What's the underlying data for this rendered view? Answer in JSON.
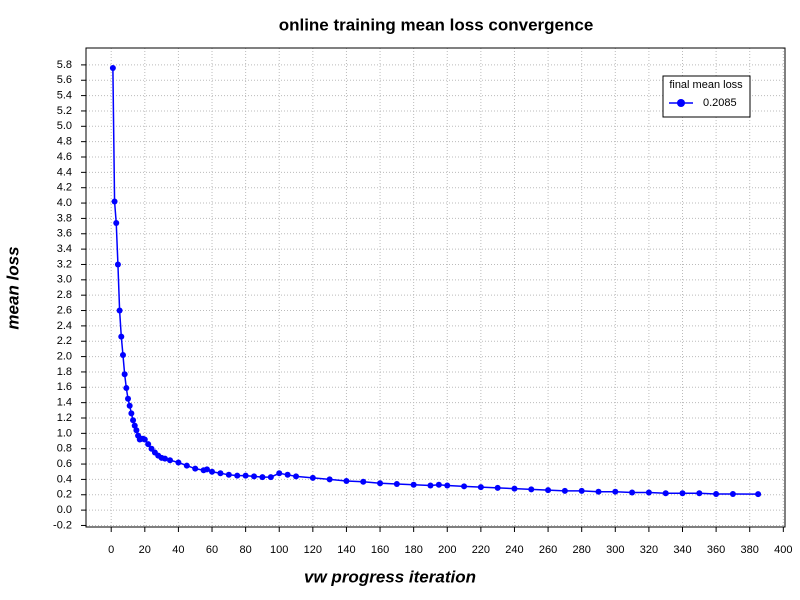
{
  "chart_data": {
    "type": "line",
    "title": "online training mean loss convergence",
    "x_label": "vw progress iteration",
    "y_label": "mean loss",
    "legend_title": "final mean loss",
    "legend_position": "upper right",
    "grid": true,
    "x": [
      1,
      2,
      3,
      4,
      5,
      6,
      7,
      8,
      9,
      10,
      11,
      12,
      13,
      14,
      15,
      16,
      17,
      18,
      19,
      20,
      22,
      24,
      26,
      28,
      30,
      32,
      35,
      40,
      45,
      50,
      55,
      57,
      60,
      65,
      70,
      75,
      80,
      85,
      90,
      95,
      100,
      105,
      110,
      120,
      130,
      140,
      150,
      160,
      170,
      180,
      190,
      195,
      200,
      210,
      220,
      230,
      240,
      250,
      260,
      270,
      280,
      290,
      300,
      310,
      320,
      330,
      340,
      350,
      360,
      370,
      385
    ],
    "series": [
      {
        "name": "0.2085",
        "color": "#0000ff",
        "values": [
          5.76,
          4.02,
          3.74,
          3.2,
          2.6,
          2.26,
          2.02,
          1.77,
          1.59,
          1.45,
          1.36,
          1.26,
          1.17,
          1.1,
          1.04,
          0.97,
          0.92,
          0.93,
          0.93,
          0.92,
          0.86,
          0.8,
          0.75,
          0.71,
          0.68,
          0.67,
          0.65,
          0.62,
          0.58,
          0.54,
          0.52,
          0.53,
          0.5,
          0.48,
          0.46,
          0.45,
          0.45,
          0.44,
          0.43,
          0.43,
          0.48,
          0.46,
          0.44,
          0.42,
          0.4,
          0.38,
          0.37,
          0.35,
          0.34,
          0.33,
          0.32,
          0.33,
          0.32,
          0.31,
          0.3,
          0.29,
          0.28,
          0.27,
          0.26,
          0.25,
          0.25,
          0.24,
          0.24,
          0.23,
          0.23,
          0.22,
          0.22,
          0.22,
          0.21,
          0.21,
          0.2085
        ]
      }
    ],
    "xlim": [
      -15,
      401
    ],
    "ylim": [
      -0.22,
      6.02
    ],
    "xticks": [
      0,
      20,
      40,
      60,
      80,
      100,
      120,
      140,
      160,
      180,
      200,
      220,
      240,
      260,
      280,
      300,
      320,
      340,
      360,
      380,
      400
    ],
    "yticks": [
      -0.2,
      {
        "value": 0,
        "label": "0.0"
      },
      0.2,
      0.4,
      0.6,
      0.8,
      {
        "value": 1,
        "label": "1.0"
      },
      1.2,
      1.4,
      1.6,
      1.8,
      {
        "value": 2,
        "label": "2.0"
      },
      2.2,
      2.4,
      2.6,
      2.8,
      {
        "value": 3,
        "label": "3.0"
      },
      3.2,
      3.4,
      3.6,
      3.8,
      {
        "value": 4,
        "label": "4.0"
      },
      4.2,
      4.4,
      4.6,
      4.8,
      {
        "value": 5,
        "label": "5.0"
      },
      5.2,
      5.4,
      5.6,
      5.8
    ]
  }
}
